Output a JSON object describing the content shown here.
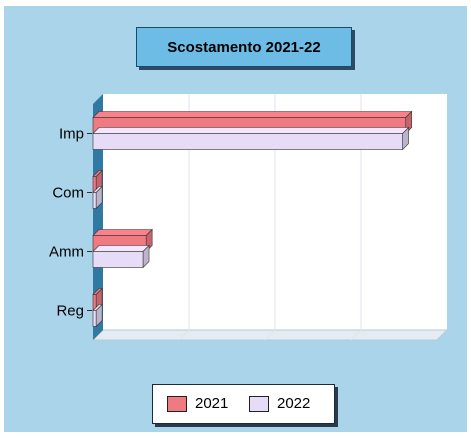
{
  "chart_data": {
    "type": "bar",
    "orientation": "horizontal",
    "title": "Scostamento 2021-22",
    "categories": [
      "Imp",
      "Com",
      "Amm",
      "Reg"
    ],
    "series": [
      {
        "name": "2021",
        "color": "#f07a82",
        "values": [
          100,
          1,
          17,
          1
        ]
      },
      {
        "name": "2022",
        "color": "#e6dcf8",
        "values": [
          99,
          1,
          16,
          1
        ]
      }
    ],
    "xlim": [
      0,
      110
    ],
    "grid": true,
    "legend_position": "bottom"
  }
}
